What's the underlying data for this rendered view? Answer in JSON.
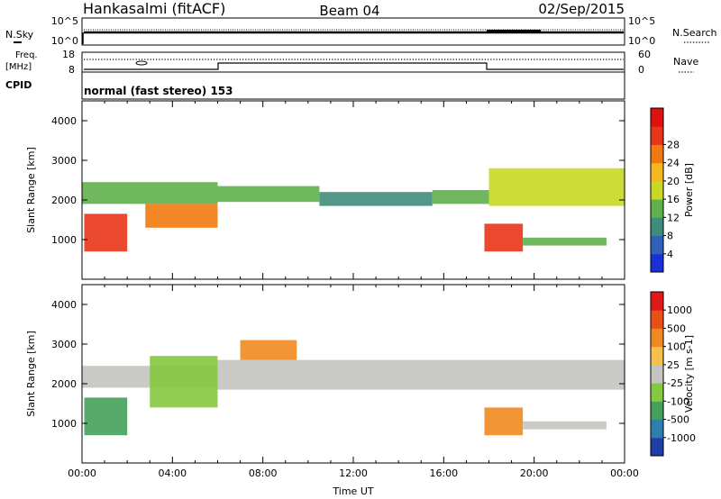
{
  "header": {
    "station": "Hankasalmi (fitACF)",
    "beam": "Beam 04",
    "date": "02/Sep/2015"
  },
  "nsky_panel": {
    "left_label": "N.Sky",
    "left_ticks": [
      "10^5",
      "10^0"
    ],
    "right_label": "N.Search",
    "right_ticks": [
      "10^5",
      "10^0"
    ]
  },
  "freq_panel": {
    "left_label_line1": "Freq.",
    "left_label_line2": "[MHz]",
    "left_ticks": [
      "18",
      "8"
    ],
    "right_label": "Nave",
    "right_ticks": [
      "60",
      "0"
    ]
  },
  "cpid_panel": {
    "label": "CPID",
    "mode_text": "normal (fast stereo) 153"
  },
  "colors": {
    "power": [
      "#1a2fd8",
      "#2e62b8",
      "#3f8c7a",
      "#5fb04c",
      "#c8d824",
      "#f2b81e",
      "#f07a10",
      "#e83418",
      "#e01010"
    ],
    "velocity": [
      "#1f3fa8",
      "#2f7eb0",
      "#45a05a",
      "#86c840",
      "#c4c4c0",
      "#f4c050",
      "#f08a20",
      "#e85018",
      "#e01818"
    ]
  },
  "chart_data": [
    {
      "type": "heatmap",
      "panel": "power",
      "ylabel": "Slant Range [km]",
      "ylim": [
        0,
        4500
      ],
      "yticks": [
        "1000",
        "2000",
        "3000",
        "4000"
      ],
      "xlim": [
        0,
        24
      ],
      "colorbar_label": "Power [dB]",
      "colorbar_ticks": [
        "4",
        "8",
        "12",
        "16",
        "20",
        "24",
        "28"
      ],
      "bands": [
        {
          "start": 0.0,
          "end": 6.0,
          "low": 1900,
          "high": 2450,
          "level": 3
        },
        {
          "start": 6.0,
          "end": 10.5,
          "low": 1950,
          "high": 2350,
          "level": 3
        },
        {
          "start": 10.5,
          "end": 15.5,
          "low": 1850,
          "high": 2200,
          "level": 2
        },
        {
          "start": 15.5,
          "end": 18.0,
          "low": 1900,
          "high": 2250,
          "level": 3
        },
        {
          "start": 18.0,
          "end": 24.0,
          "low": 1850,
          "high": 2800,
          "level": 4
        },
        {
          "start": 0.1,
          "end": 2.0,
          "low": 700,
          "high": 1650,
          "level": 7
        },
        {
          "start": 2.8,
          "end": 6.0,
          "low": 1300,
          "high": 1900,
          "level": 6
        },
        {
          "start": 17.8,
          "end": 19.5,
          "low": 700,
          "high": 1400,
          "level": 7
        },
        {
          "start": 19.5,
          "end": 23.2,
          "low": 850,
          "high": 1050,
          "level": 3
        }
      ]
    },
    {
      "type": "heatmap",
      "panel": "velocity",
      "ylabel": "Slant Range [km]",
      "ylim": [
        0,
        4500
      ],
      "yticks": [
        "1000",
        "2000",
        "3000",
        "4000"
      ],
      "xlim": [
        0,
        24
      ],
      "xticks": [
        "00:00",
        "04:00",
        "08:00",
        "12:00",
        "16:00",
        "20:00",
        "00:00"
      ],
      "xlabel": "Time UT",
      "colorbar_label": "Velocity [m s-1]",
      "colorbar_ticks": [
        "1000",
        "500",
        "100",
        "25",
        "-25",
        "-100",
        "-500",
        "-1000"
      ],
      "bands": [
        {
          "start": 0.0,
          "end": 6.0,
          "low": 1900,
          "high": 2450,
          "level": 4
        },
        {
          "start": 6.0,
          "end": 24.0,
          "low": 1850,
          "high": 2600,
          "level": 4
        },
        {
          "start": 0.1,
          "end": 2.0,
          "low": 700,
          "high": 1650,
          "level": 2
        },
        {
          "start": 3.0,
          "end": 6.0,
          "low": 1400,
          "high": 2700,
          "level": 3
        },
        {
          "start": 7.0,
          "end": 9.5,
          "low": 2600,
          "high": 3100,
          "level": 6
        },
        {
          "start": 17.8,
          "end": 19.5,
          "low": 700,
          "high": 1400,
          "level": 6
        },
        {
          "start": 19.5,
          "end": 23.2,
          "low": 850,
          "high": 1050,
          "level": 4
        }
      ]
    }
  ]
}
